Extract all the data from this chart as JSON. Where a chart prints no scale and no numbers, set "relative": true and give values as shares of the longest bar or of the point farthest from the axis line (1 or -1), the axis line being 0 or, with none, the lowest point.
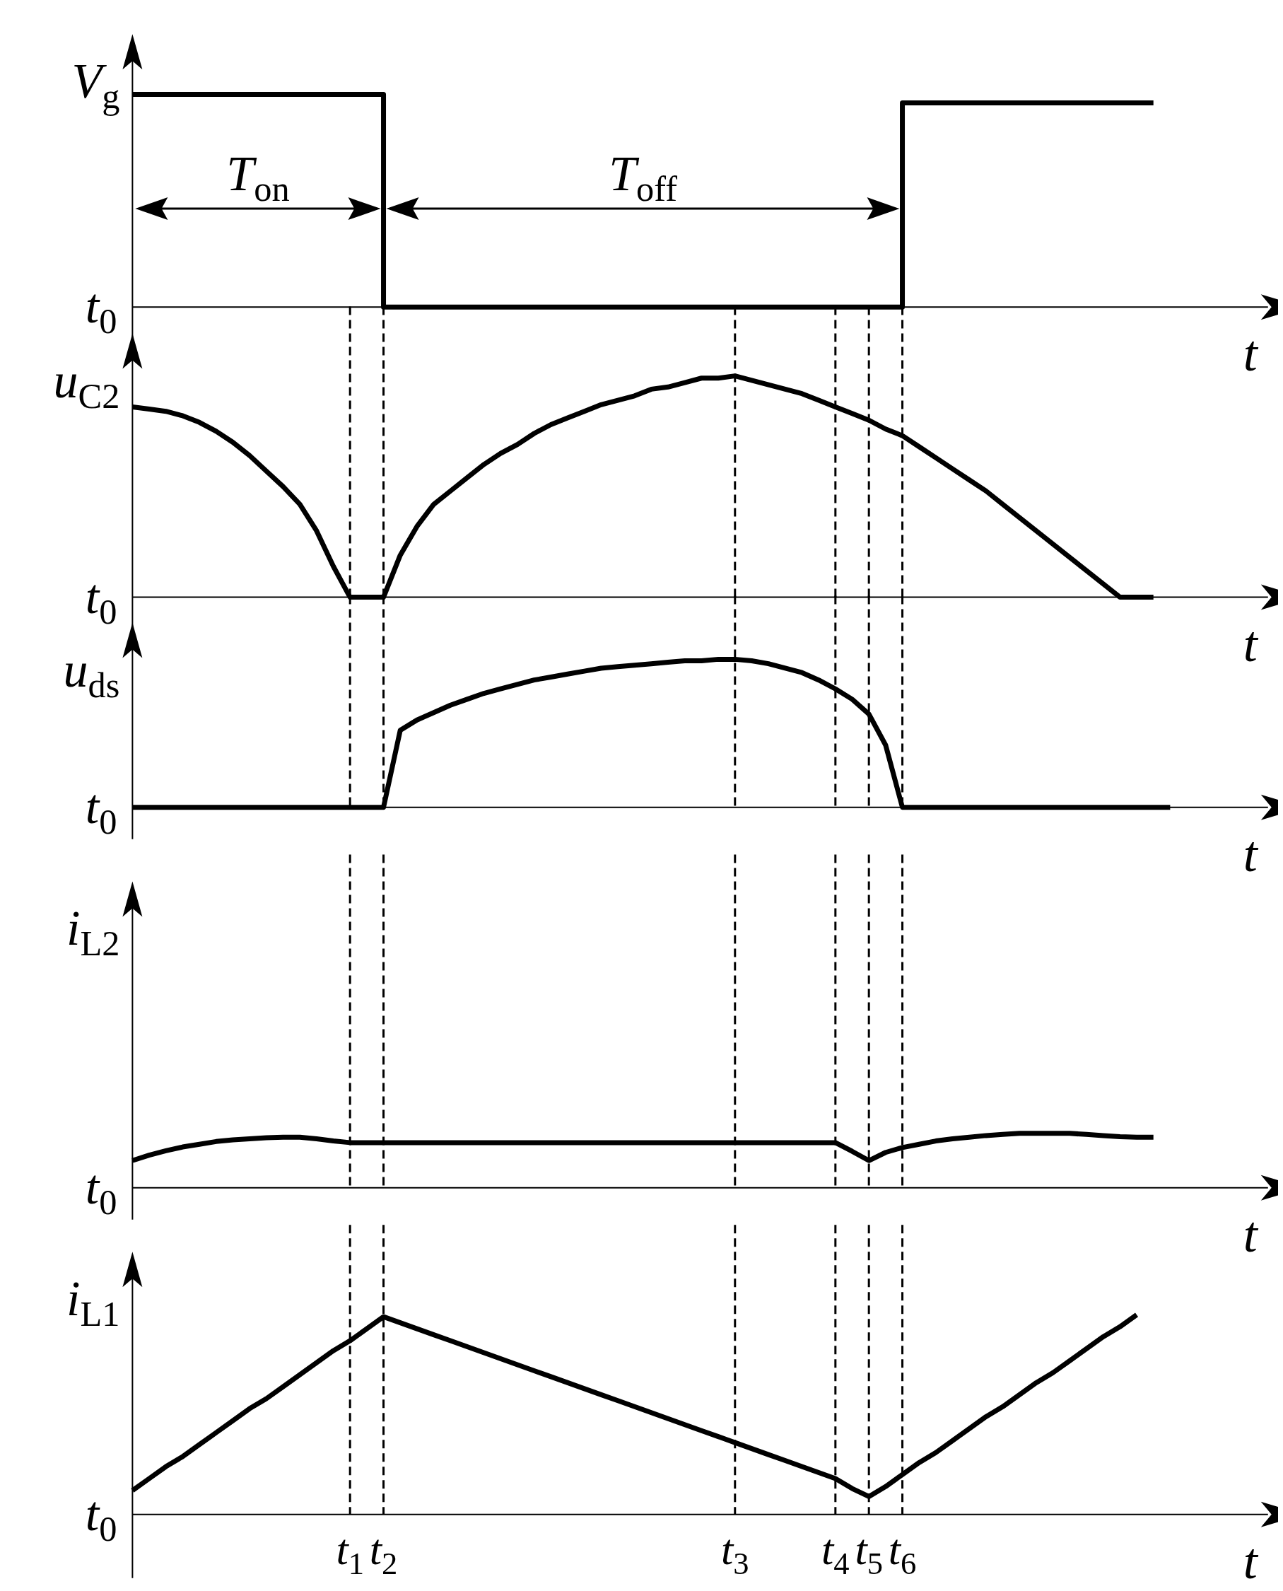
{
  "chart_data": [
    {
      "type": "step",
      "relative": true,
      "tick_labels": false,
      "xlabel": "t",
      "ylabel": "V$_{g}$",
      "annotations": [
        "t$_{0}$",
        "T$_{on}$",
        "T$_{off}$"
      ],
      "categories": [
        null,
        null,
        null,
        null,
        null,
        null,
        null,
        null,
        null,
        null,
        null,
        null,
        null,
        null,
        null,
        null,
        null,
        null,
        null,
        null,
        null,
        null,
        null,
        null,
        null,
        null,
        null,
        null,
        null,
        null,
        null,
        null,
        null,
        null,
        null,
        null,
        null,
        null,
        null,
        null,
        null,
        null,
        null,
        null,
        null,
        null,
        null,
        null,
        null,
        null,
        null,
        null,
        null,
        null,
        null,
        null,
        null,
        null,
        null,
        null,
        null,
        null,
        null,
        null,
        null,
        null,
        null,
        null
      ],
      "series": [
        {
          "color": "#000000",
          "values": [
            1,
            1,
            1,
            1,
            1,
            1,
            1,
            1,
            1,
            1,
            1,
            1,
            1,
            1,
            1,
            0,
            0,
            0,
            0,
            0,
            0,
            0,
            0,
            0,
            0,
            0,
            0,
            0,
            0,
            0,
            0,
            0,
            0,
            0,
            0,
            0,
            0,
            0,
            0,
            0,
            0,
            0,
            0,
            0,
            0,
            0,
            0.96,
            0.96,
            0.96,
            0.96,
            0.96,
            0.96,
            0.96,
            0.96,
            0.96,
            0.96,
            0.96,
            0.96,
            0.96,
            0.96,
            0.96,
            0.96,
            null,
            null,
            null,
            null,
            null,
            null
          ]
        }
      ]
    },
    {
      "type": "line",
      "relative": true,
      "tick_labels": false,
      "xlabel": "t",
      "ylabel": "u$_{C2}$",
      "annotations": [
        "t$_{0}$"
      ],
      "categories": [
        null,
        null,
        null,
        null,
        null,
        null,
        null,
        null,
        null,
        null,
        null,
        null,
        null,
        "t$_{1}$",
        null,
        "t$_{2}$",
        null,
        null,
        null,
        null,
        null,
        null,
        null,
        null,
        null,
        null,
        null,
        null,
        null,
        null,
        null,
        null,
        null,
        null,
        null,
        null,
        "t$_{3}$",
        null,
        null,
        null,
        null,
        null,
        "t$_{4}$",
        null,
        "t$_{5}$",
        null,
        "t$_{6}$",
        null,
        null,
        null,
        null,
        null,
        null,
        null,
        null,
        null,
        null,
        null,
        null,
        null,
        null,
        null,
        null,
        null,
        null,
        null,
        null,
        null
      ],
      "ref_lines": [
        {
          "axis": "x",
          "value": "t$_{1}$"
        },
        {
          "axis": "x",
          "value": "t$_{2}$"
        },
        {
          "axis": "x",
          "value": "t$_{3}$"
        },
        {
          "axis": "x",
          "value": "t$_{4}$"
        },
        {
          "axis": "x",
          "value": "t$_{5}$"
        },
        {
          "axis": "x",
          "value": "t$_{6}$"
        }
      ],
      "series": [
        {
          "color": "#000000",
          "values": [
            0.86,
            0.85,
            0.84,
            0.82,
            0.79,
            0.75,
            0.7,
            0.64,
            0.57,
            0.5,
            0.42,
            0.3,
            0.14,
            0,
            0,
            0,
            0.19,
            0.32,
            0.42,
            0.48,
            0.54,
            0.6,
            0.65,
            0.69,
            0.74,
            0.78,
            0.81,
            0.84,
            0.87,
            0.89,
            0.91,
            0.94,
            0.95,
            0.97,
            0.99,
            0.99,
            1,
            0.98,
            0.96,
            0.94,
            0.92,
            0.89,
            0.86,
            0.83,
            0.8,
            0.76,
            0.73,
            0.68,
            0.63,
            0.58,
            0.53,
            0.48,
            0.42,
            0.36,
            0.3,
            0.24,
            0.18,
            0.12,
            0.06,
            0,
            0,
            0,
            null,
            null,
            null,
            null,
            null,
            null
          ]
        }
      ]
    },
    {
      "type": "line",
      "relative": true,
      "tick_labels": false,
      "xlabel": "t",
      "ylabel": "u$_{ds}$",
      "annotations": [
        "t$_{0}$"
      ],
      "categories": [
        null,
        null,
        null,
        null,
        null,
        null,
        null,
        null,
        null,
        null,
        null,
        null,
        null,
        "t$_{1}$",
        null,
        "t$_{2}$",
        null,
        null,
        null,
        null,
        null,
        null,
        null,
        null,
        null,
        null,
        null,
        null,
        null,
        null,
        null,
        null,
        null,
        null,
        null,
        null,
        "t$_{3}$",
        null,
        null,
        null,
        null,
        null,
        "t$_{4}$",
        null,
        "t$_{5}$",
        null,
        "t$_{6}$",
        null,
        null,
        null,
        null,
        null,
        null,
        null,
        null,
        null,
        null,
        null,
        null,
        null,
        null,
        null,
        null,
        null,
        null,
        null,
        null,
        null
      ],
      "ref_lines": [
        {
          "axis": "x",
          "value": "t$_{1}$"
        },
        {
          "axis": "x",
          "value": "t$_{2}$"
        },
        {
          "axis": "x",
          "value": "t$_{3}$"
        },
        {
          "axis": "x",
          "value": "t$_{4}$"
        },
        {
          "axis": "x",
          "value": "t$_{5}$"
        },
        {
          "axis": "x",
          "value": "t$_{6}$"
        }
      ],
      "series": [
        {
          "color": "#000000",
          "values": [
            0,
            0,
            0,
            0,
            0,
            0,
            0,
            0,
            0,
            0,
            0,
            0,
            0,
            0,
            0,
            0,
            0.52,
            0.59,
            0.64,
            0.69,
            0.73,
            0.77,
            0.8,
            0.83,
            0.86,
            0.88,
            0.9,
            0.92,
            0.94,
            0.95,
            0.96,
            0.97,
            0.98,
            0.99,
            0.99,
            1,
            1,
            0.99,
            0.97,
            0.94,
            0.91,
            0.86,
            0.8,
            0.73,
            0.63,
            0.42,
            0,
            0,
            0,
            0,
            0,
            0,
            0,
            0,
            0,
            0,
            0,
            0,
            0,
            0,
            0,
            0,
            0,
            null,
            null,
            null,
            null,
            null
          ]
        }
      ]
    },
    {
      "type": "line",
      "relative": true,
      "tick_labels": false,
      "xlabel": "t",
      "ylabel": "i$_{L2}$",
      "annotations": [
        "t$_{0}$"
      ],
      "categories": [
        null,
        null,
        null,
        null,
        null,
        null,
        null,
        null,
        null,
        null,
        null,
        null,
        null,
        "t$_{1}$",
        null,
        "t$_{2}$",
        null,
        null,
        null,
        null,
        null,
        null,
        null,
        null,
        null,
        null,
        null,
        null,
        null,
        null,
        null,
        null,
        null,
        null,
        null,
        null,
        "t$_{3}$",
        null,
        null,
        null,
        null,
        null,
        "t$_{4}$",
        null,
        "t$_{5}$",
        null,
        "t$_{6}$",
        null,
        null,
        null,
        null,
        null,
        null,
        null,
        null,
        null,
        null,
        null,
        null,
        null,
        null,
        null,
        null,
        null,
        null,
        null,
        null,
        null
      ],
      "ref_lines": [
        {
          "axis": "x",
          "value": "t$_{1}$"
        },
        {
          "axis": "x",
          "value": "t$_{2}$"
        },
        {
          "axis": "x",
          "value": "t$_{3}$"
        },
        {
          "axis": "x",
          "value": "t$_{4}$"
        },
        {
          "axis": "x",
          "value": "t$_{5}$"
        },
        {
          "axis": "x",
          "value": "t$_{6}$"
        }
      ],
      "series": [
        {
          "color": "#000000",
          "values": [
            0.5,
            0.6,
            0.68,
            0.75,
            0.8,
            0.85,
            0.88,
            0.9,
            0.92,
            0.93,
            0.93,
            0.9,
            0.86,
            0.83,
            0.83,
            0.83,
            0.83,
            0.83,
            0.83,
            0.83,
            0.83,
            0.83,
            0.83,
            0.83,
            0.83,
            0.83,
            0.83,
            0.83,
            0.83,
            0.83,
            0.83,
            0.83,
            0.83,
            0.83,
            0.83,
            0.83,
            0.83,
            0.83,
            0.83,
            0.83,
            0.83,
            0.83,
            0.83,
            0.67,
            0.5,
            0.65,
            0.74,
            0.8,
            0.86,
            0.9,
            0.93,
            0.96,
            0.98,
            1,
            1,
            1,
            1,
            0.98,
            0.96,
            0.94,
            0.93,
            0.93,
            null,
            null,
            null,
            null,
            null,
            null
          ]
        }
      ]
    },
    {
      "type": "line",
      "relative": true,
      "xlabel": "t",
      "ylabel": "i$_{L1}$",
      "annotations": [
        "t$_{0}$"
      ],
      "categories": [
        null,
        null,
        null,
        null,
        null,
        null,
        null,
        null,
        null,
        null,
        null,
        null,
        null,
        "t$_{1}$",
        null,
        "t$_{2}$",
        null,
        null,
        null,
        null,
        null,
        null,
        null,
        null,
        null,
        null,
        null,
        null,
        null,
        null,
        null,
        null,
        null,
        null,
        null,
        null,
        "t$_{3}$",
        null,
        null,
        null,
        null,
        null,
        "t$_{4}$",
        null,
        "t$_{5}$",
        null,
        "t$_{6}$",
        null,
        null,
        null,
        null,
        null,
        null,
        null,
        null,
        null,
        null,
        null,
        null,
        null,
        null,
        null,
        null,
        null,
        null,
        null,
        null,
        null
      ],
      "ref_lines": [
        {
          "axis": "x",
          "value": "t$_{1}$"
        },
        {
          "axis": "x",
          "value": "t$_{2}$"
        },
        {
          "axis": "x",
          "value": "t$_{3}$"
        },
        {
          "axis": "x",
          "value": "t$_{4}$"
        },
        {
          "axis": "x",
          "value": "t$_{5}$"
        },
        {
          "axis": "x",
          "value": "t$_{6}$"
        }
      ],
      "series": [
        {
          "color": "#000000",
          "values": [
            0.12,
            0.18,
            0.24,
            0.29,
            0.35,
            0.41,
            0.47,
            0.53,
            0.58,
            0.64,
            0.7,
            0.76,
            0.82,
            0.87,
            0.93,
            0.99,
            0.96,
            0.93,
            0.9,
            0.87,
            0.84,
            0.81,
            0.78,
            0.75,
            0.72,
            0.69,
            0.66,
            0.63,
            0.6,
            0.57,
            0.54,
            0.51,
            0.48,
            0.45,
            0.42,
            0.39,
            0.36,
            0.33,
            0.3,
            0.27,
            0.24,
            0.21,
            0.18,
            0.13,
            0.09,
            0.14,
            0.2,
            0.26,
            0.31,
            0.37,
            0.43,
            0.49,
            0.54,
            0.6,
            0.66,
            0.71,
            0.77,
            0.83,
            0.89,
            0.94,
            1,
            null,
            null,
            null,
            null,
            null,
            null,
            null
          ]
        }
      ]
    }
  ]
}
